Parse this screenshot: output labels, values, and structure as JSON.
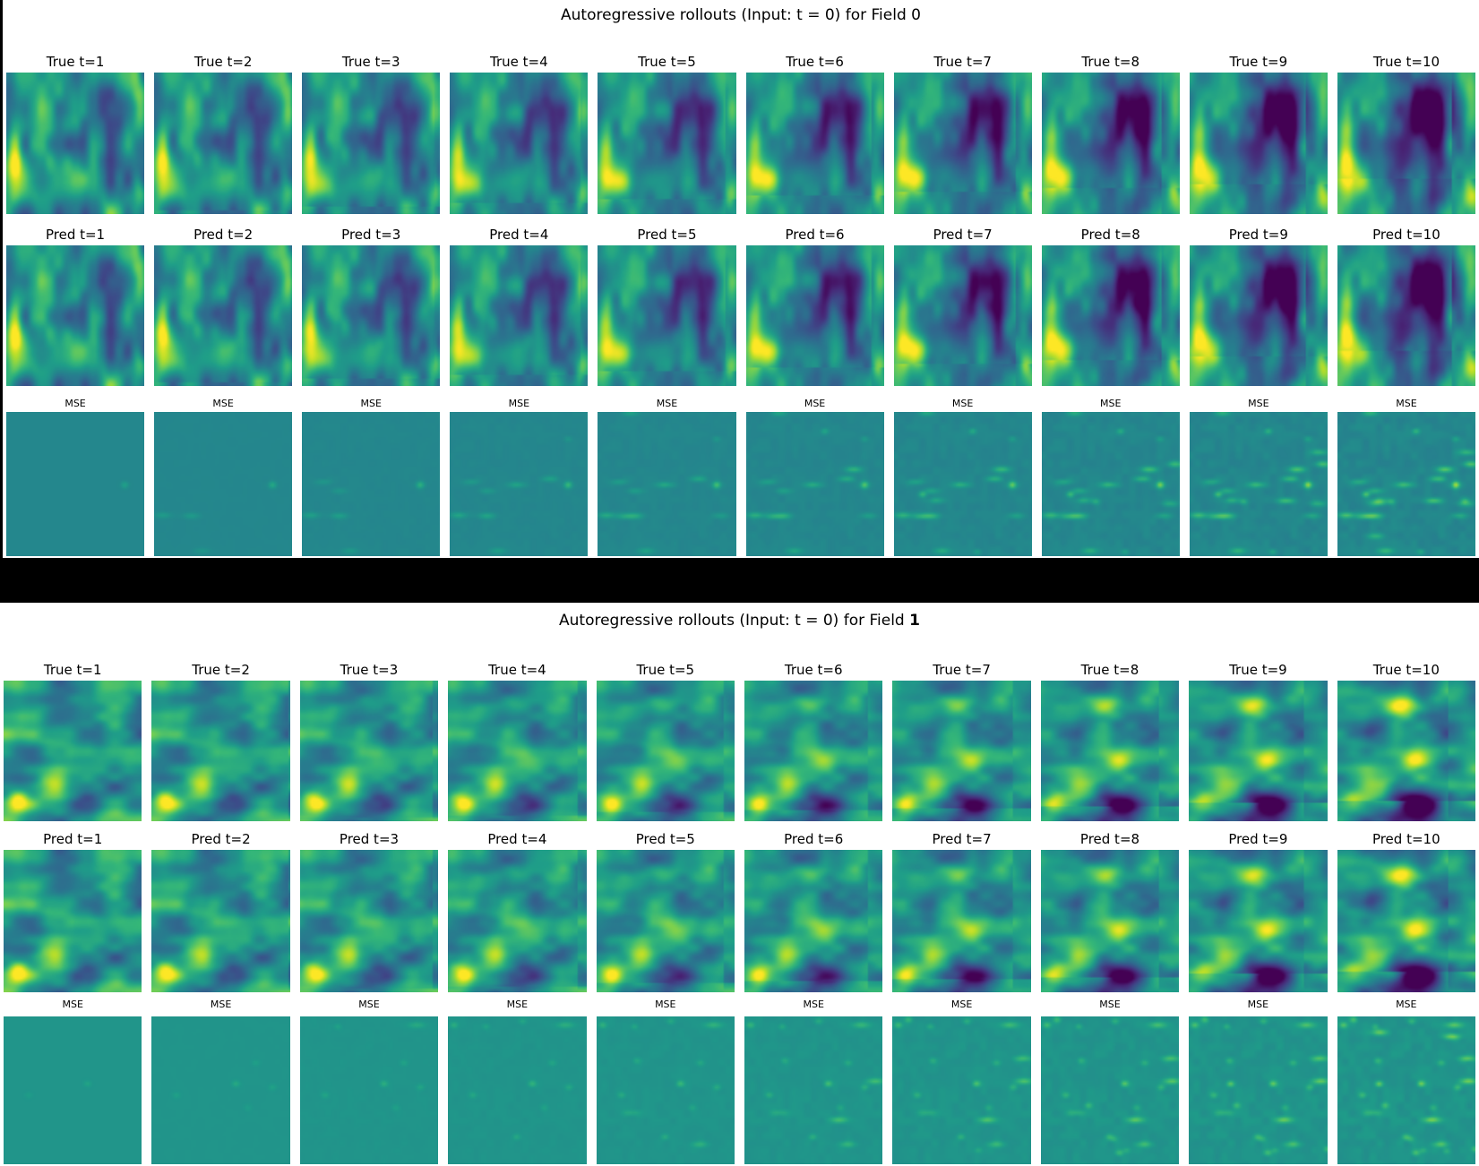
{
  "figures": [
    {
      "title_prefix": "Autoregressive rollouts (Input: t = 0) for Field ",
      "field_label": "0",
      "field_label_bold": false,
      "rows": [
        {
          "key": "true",
          "labels": [
            "True t=1",
            "True t=2",
            "True t=3",
            "True t=4",
            "True t=5",
            "True t=6",
            "True t=7",
            "True t=8",
            "True t=9",
            "True t=10"
          ]
        },
        {
          "key": "pred",
          "labels": [
            "Pred t=1",
            "Pred t=2",
            "Pred t=3",
            "Pred t=4",
            "Pred t=5",
            "Pred t=6",
            "Pred t=7",
            "Pred t=8",
            "Pred t=9",
            "Pred t=10"
          ]
        },
        {
          "key": "mse",
          "labels": [
            "MSE",
            "MSE",
            "MSE",
            "MSE",
            "MSE",
            "MSE",
            "MSE",
            "MSE",
            "MSE",
            "MSE"
          ]
        }
      ],
      "timesteps": [
        1,
        2,
        3,
        4,
        5,
        6,
        7,
        8,
        9,
        10
      ]
    },
    {
      "title_prefix": "Autoregressive rollouts (Input: t = 0) for Field ",
      "field_label": "1",
      "field_label_bold": true,
      "rows": [
        {
          "key": "true",
          "labels": [
            "True t=1",
            "True t=2",
            "True t=3",
            "True t=4",
            "True t=5",
            "True t=6",
            "True t=7",
            "True t=8",
            "True t=9",
            "True t=10"
          ]
        },
        {
          "key": "pred",
          "labels": [
            "Pred t=1",
            "Pred t=2",
            "Pred t=3",
            "Pred t=4",
            "Pred t=5",
            "Pred t=6",
            "Pred t=7",
            "Pred t=8",
            "Pred t=9",
            "Pred t=10"
          ]
        },
        {
          "key": "mse",
          "labels": [
            "MSE",
            "MSE",
            "MSE",
            "MSE",
            "MSE",
            "MSE",
            "MSE",
            "MSE",
            "MSE",
            "MSE"
          ]
        }
      ],
      "timesteps": [
        1,
        2,
        3,
        4,
        5,
        6,
        7,
        8,
        9,
        10
      ]
    }
  ],
  "chart_data": [
    {
      "type": "heatmap",
      "title": "Autoregressive rollouts (Input: t = 0) for Field 0",
      "colormap": "viridis",
      "rows": [
        "True",
        "Pred",
        "MSE"
      ],
      "columns_t": [
        1,
        2,
        3,
        4,
        5,
        6,
        7,
        8,
        9,
        10
      ],
      "description": "10 true-field heatmaps, 10 predicted-field heatmaps (visually near-identical to true), and 10 MSE heatmaps (near-uniform teal, faint green error speckles growing with t)."
    },
    {
      "type": "heatmap",
      "title": "Autoregressive rollouts (Input: t = 0) for Field 1",
      "colormap": "viridis",
      "rows": [
        "True",
        "Pred",
        "MSE"
      ],
      "columns_t": [
        1,
        2,
        3,
        4,
        5,
        6,
        7,
        8,
        9,
        10
      ],
      "description": "Same layout as Field 0; fields show horizontal structures with growing dark region at bottom center; MSE speckles increase with t."
    }
  ],
  "colors": {
    "background": "#ffffff",
    "separator": "#000000",
    "label_text": "#000000",
    "mse_base_field0": "#25878e",
    "mse_base_field1": "#219a8a"
  }
}
